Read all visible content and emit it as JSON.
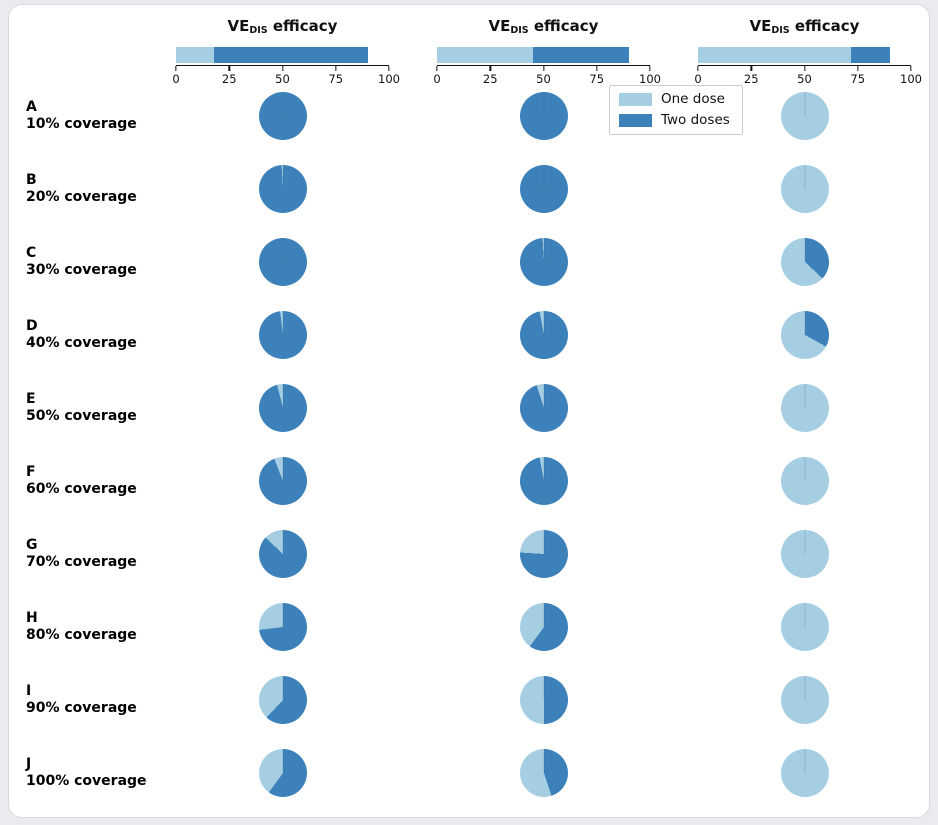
{
  "page": {
    "background": "#e9ebee",
    "card_background": "#ffffff"
  },
  "legend": {
    "items": [
      {
        "label": "One dose",
        "color": "#a6cee3"
      },
      {
        "label": "Two doses",
        "color": "#3c81b9"
      }
    ]
  },
  "chart_data": {
    "type": "pie",
    "description": "Grid of pie charts: optimal vaccine dose allocation (one dose vs two doses) by coverage level (rows A-J) for three VE_DIS efficacy scenarios (columns). Each column header shows a stacked horizontal bar on a 0-100 efficacy scale.",
    "colors": {
      "one_dose": "#a6cee3",
      "two_doses": "#3c81b9"
    },
    "axis": {
      "min": 0,
      "max": 100,
      "ticks": [
        0,
        25,
        50,
        75,
        100
      ]
    },
    "columns": [
      {
        "title_main": "VE",
        "title_sub": "DIS",
        "title_rest": " efficacy",
        "bar": {
          "one_dose_end": 18,
          "two_dose_end": 90
        }
      },
      {
        "title_main": "VE",
        "title_sub": "DIS",
        "title_rest": " efficacy",
        "bar": {
          "one_dose_end": 45,
          "two_dose_end": 90
        }
      },
      {
        "title_main": "VE",
        "title_sub": "DIS",
        "title_rest": " efficacy",
        "bar": {
          "one_dose_end": 72,
          "two_dose_end": 90
        }
      }
    ],
    "rows": [
      {
        "panel": "A",
        "coverage": "10% coverage",
        "one_dose_fraction": [
          0.0,
          0.0,
          1.0
        ]
      },
      {
        "panel": "B",
        "coverage": "20% coverage",
        "one_dose_fraction": [
          0.01,
          0.0,
          1.0
        ]
      },
      {
        "panel": "C",
        "coverage": "30% coverage",
        "one_dose_fraction": [
          0.0,
          0.01,
          0.63
        ]
      },
      {
        "panel": "D",
        "coverage": "40% coverage",
        "one_dose_fraction": [
          0.02,
          0.03,
          0.67
        ]
      },
      {
        "panel": "E",
        "coverage": "50% coverage",
        "one_dose_fraction": [
          0.04,
          0.05,
          1.0
        ]
      },
      {
        "panel": "F",
        "coverage": "60% coverage",
        "one_dose_fraction": [
          0.06,
          0.03,
          1.0
        ]
      },
      {
        "panel": "G",
        "coverage": "70% coverage",
        "one_dose_fraction": [
          0.13,
          0.24,
          1.0
        ]
      },
      {
        "panel": "H",
        "coverage": "80% coverage",
        "one_dose_fraction": [
          0.27,
          0.4,
          1.0
        ]
      },
      {
        "panel": "I",
        "coverage": "90% coverage",
        "one_dose_fraction": [
          0.38,
          0.5,
          1.0
        ]
      },
      {
        "panel": "J",
        "coverage": "100% coverage",
        "one_dose_fraction": [
          0.4,
          0.55,
          1.0
        ]
      }
    ]
  }
}
